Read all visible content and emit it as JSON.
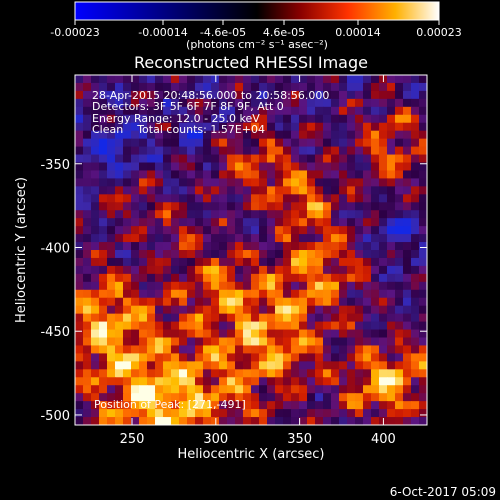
{
  "chart_data": {
    "type": "heatmap",
    "title": "Reconstructed RHESSI Image",
    "xlabel": "Heliocentric X (arcsec)",
    "ylabel": "Heliocentric Y (arcsec)",
    "xlim": [
      216,
      426
    ],
    "ylim": [
      -506,
      -297
    ],
    "x_ticks": [
      250,
      300,
      350,
      400
    ],
    "y_ticks": [
      -350,
      -400,
      -450,
      -500
    ],
    "colorbar": {
      "ticks": [
        "-0.00023",
        "-0.00014",
        "-4.6e-05",
        "4.6e-05",
        "0.00014",
        "0.00023"
      ],
      "units": "(photons cm⁻² s⁻¹ asec⁻²)",
      "min": -0.00023,
      "max": 0.00023
    },
    "annotations": {
      "time": "28-Apr-2015 20:48:56.000 to 20:58:56.000",
      "detectors": "Detectors: 3F 5F 6F 7F 8F 9F, Att 0",
      "energy": "Energy Range: 12.0 - 25.0 keV",
      "clean": "Clean    Total counts: 1.57E+04",
      "position": "Position of Peak: [271,-491]"
    },
    "peak": [
      271,
      -491
    ],
    "grid": false
  },
  "footer": {
    "date": "6-Oct-2017 05:09"
  }
}
